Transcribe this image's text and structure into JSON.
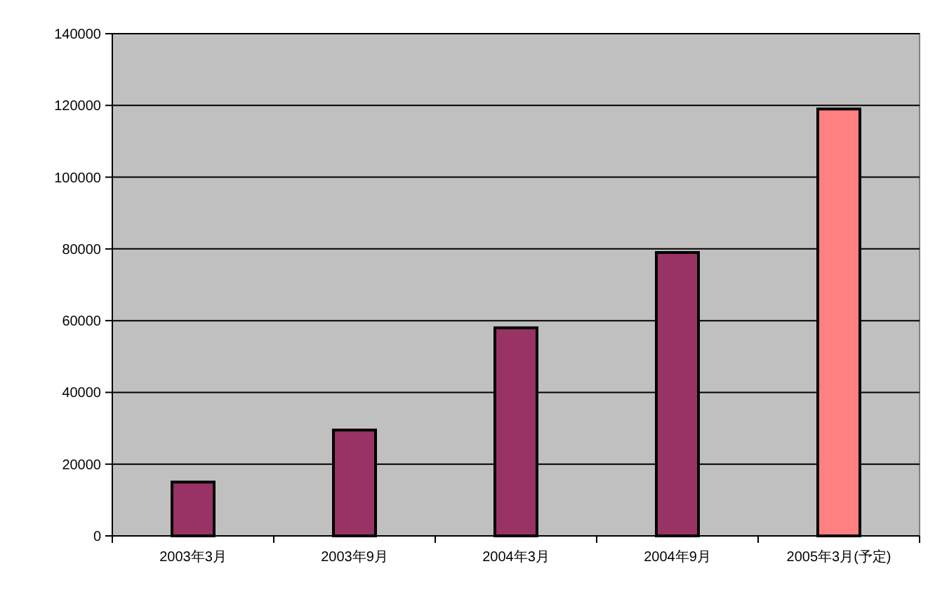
{
  "chart_data": {
    "type": "bar",
    "categories": [
      "2003年3月",
      "2003年9月",
      "2004年3月",
      "2004年9月",
      "2005年3月(予定)"
    ],
    "values": [
      15000,
      29500,
      58000,
      79000,
      119000
    ],
    "colors": [
      "#993366",
      "#993366",
      "#993366",
      "#993366",
      "#ff8080"
    ],
    "ylim": [
      0,
      140000
    ],
    "yticks": [
      0,
      20000,
      40000,
      60000,
      80000,
      100000,
      120000,
      140000
    ],
    "grid": "y"
  }
}
